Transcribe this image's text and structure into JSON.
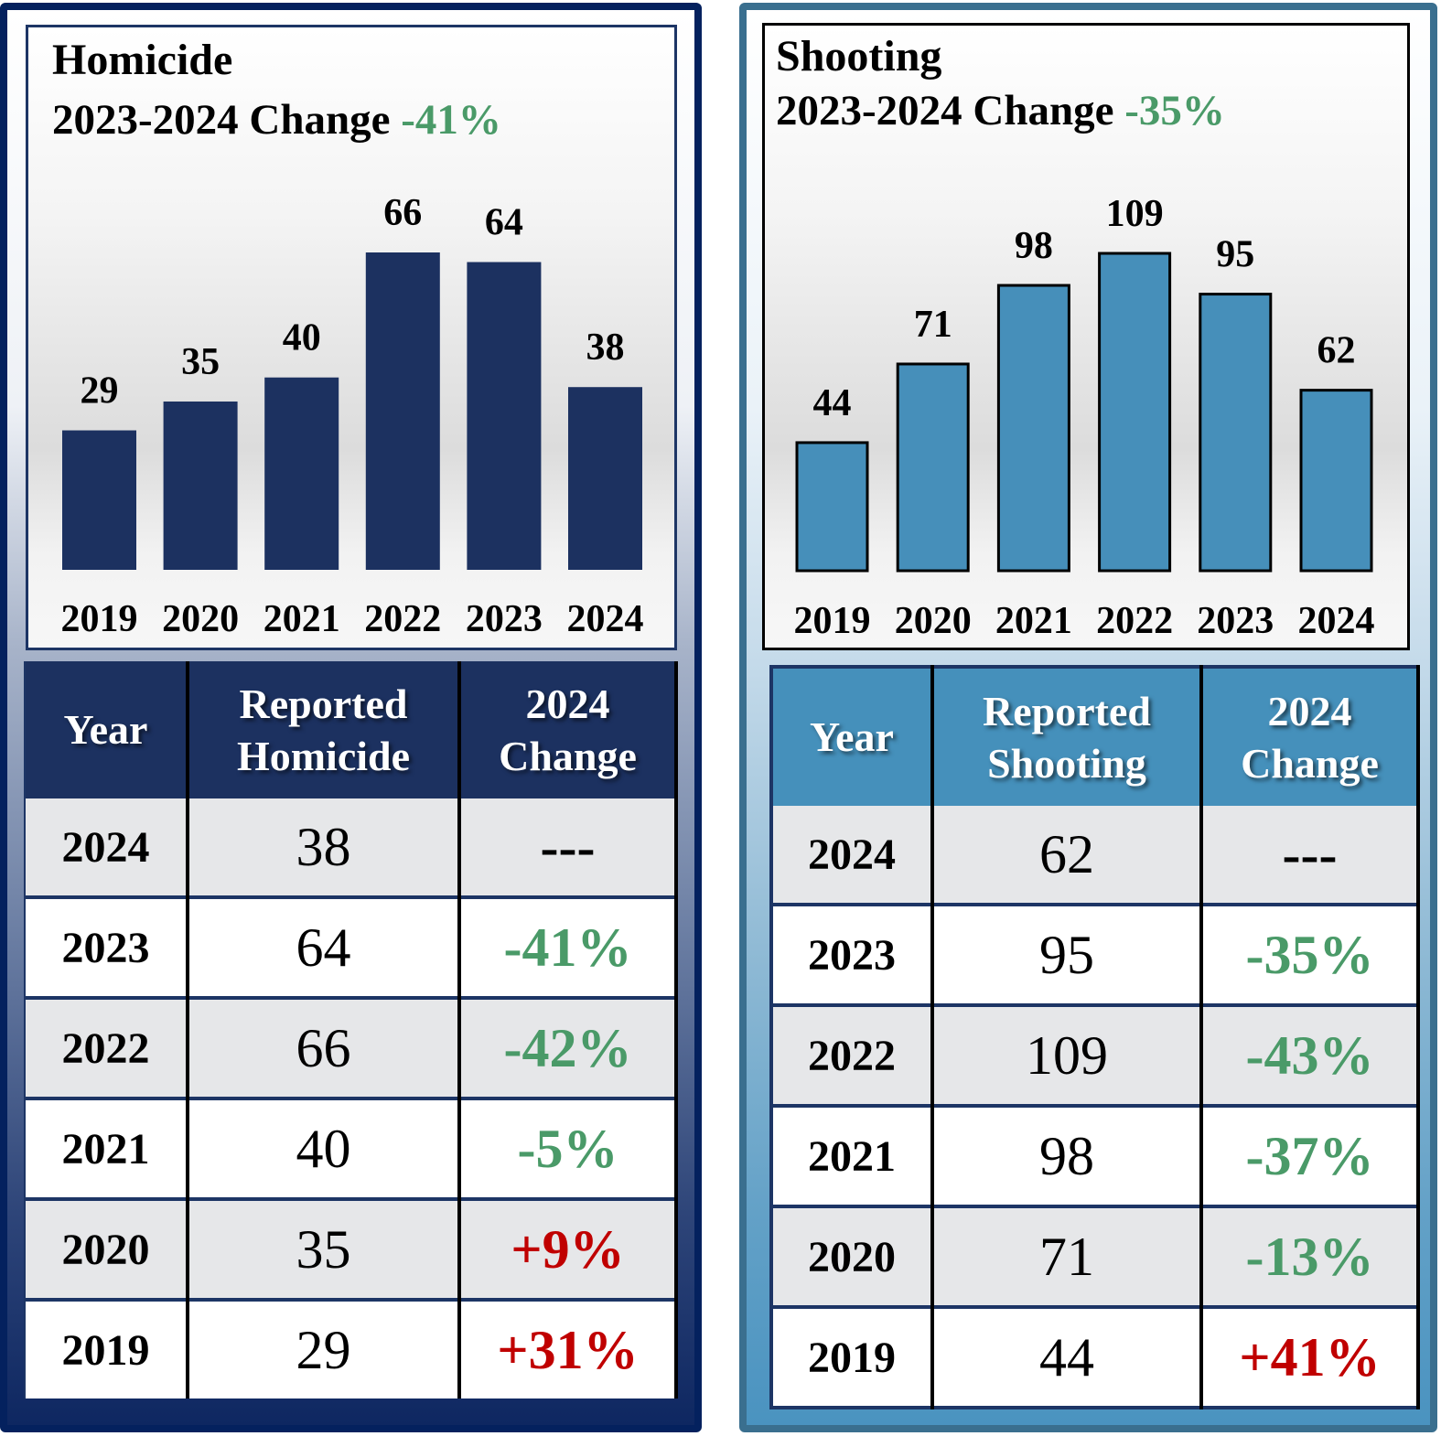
{
  "panels": [
    {
      "id": "homicide",
      "title": "Homicide",
      "subtitle_prefix": "2023-2024 Change",
      "subtitle_pct": "-41%",
      "table": {
        "headers": [
          "Year",
          "Reported Homicide",
          "2024 Change"
        ],
        "header_lines": [
          [
            "Year"
          ],
          [
            "Reported",
            "Homicide"
          ],
          [
            "2024",
            "Change"
          ]
        ],
        "rows": [
          {
            "year": "2024",
            "count": "38",
            "change": "---",
            "dir": "none"
          },
          {
            "year": "2023",
            "count": "64",
            "change": "-41%",
            "dir": "neg"
          },
          {
            "year": "2022",
            "count": "66",
            "change": "-42%",
            "dir": "neg"
          },
          {
            "year": "2021",
            "count": "40",
            "change": "-5%",
            "dir": "neg"
          },
          {
            "year": "2020",
            "count": "35",
            "change": "+9%",
            "dir": "pos"
          },
          {
            "year": "2019",
            "count": "29",
            "change": "+31%",
            "dir": "pos"
          }
        ]
      }
    },
    {
      "id": "shooting",
      "title": "Shooting",
      "subtitle_prefix": "2023-2024 Change",
      "subtitle_pct": "-35%",
      "table": {
        "headers": [
          "Year",
          "Reported Shooting",
          "2024 Change"
        ],
        "header_lines": [
          [
            "Year"
          ],
          [
            "Reported",
            "Shooting"
          ],
          [
            "2024",
            "Change"
          ]
        ],
        "rows": [
          {
            "year": "2024",
            "count": "62",
            "change": "---",
            "dir": "none"
          },
          {
            "year": "2023",
            "count": "95",
            "change": "-35%",
            "dir": "neg"
          },
          {
            "year": "2022",
            "count": "109",
            "change": "-43%",
            "dir": "neg"
          },
          {
            "year": "2021",
            "count": "98",
            "change": "-37%",
            "dir": "neg"
          },
          {
            "year": "2020",
            "count": "71",
            "change": "-13%",
            "dir": "neg"
          },
          {
            "year": "2019",
            "count": "44",
            "change": "+41%",
            "dir": "pos"
          }
        ]
      }
    }
  ],
  "colors": {
    "homicide_bar": "#1c3160",
    "shooting_bar": "#468fba",
    "decrease": "#4a9a68",
    "increase": "#c00000"
  },
  "chart_data": [
    {
      "type": "bar",
      "title": "Homicide",
      "subtitle": "2023-2024 Change -41%",
      "categories": [
        "2019",
        "2020",
        "2021",
        "2022",
        "2023",
        "2024"
      ],
      "values": [
        29,
        35,
        40,
        66,
        64,
        38
      ],
      "data_labels": true,
      "xlabel": "",
      "ylabel": "",
      "ylim": [
        0,
        66
      ],
      "grid": false,
      "legend": "none"
    },
    {
      "type": "bar",
      "title": "Shooting",
      "subtitle": "2023-2024 Change -35%",
      "categories": [
        "2019",
        "2020",
        "2021",
        "2022",
        "2023",
        "2024"
      ],
      "values": [
        44,
        71,
        98,
        109,
        95,
        62
      ],
      "data_labels": true,
      "xlabel": "",
      "ylabel": "",
      "ylim": [
        0,
        109
      ],
      "grid": false,
      "legend": "none"
    }
  ]
}
